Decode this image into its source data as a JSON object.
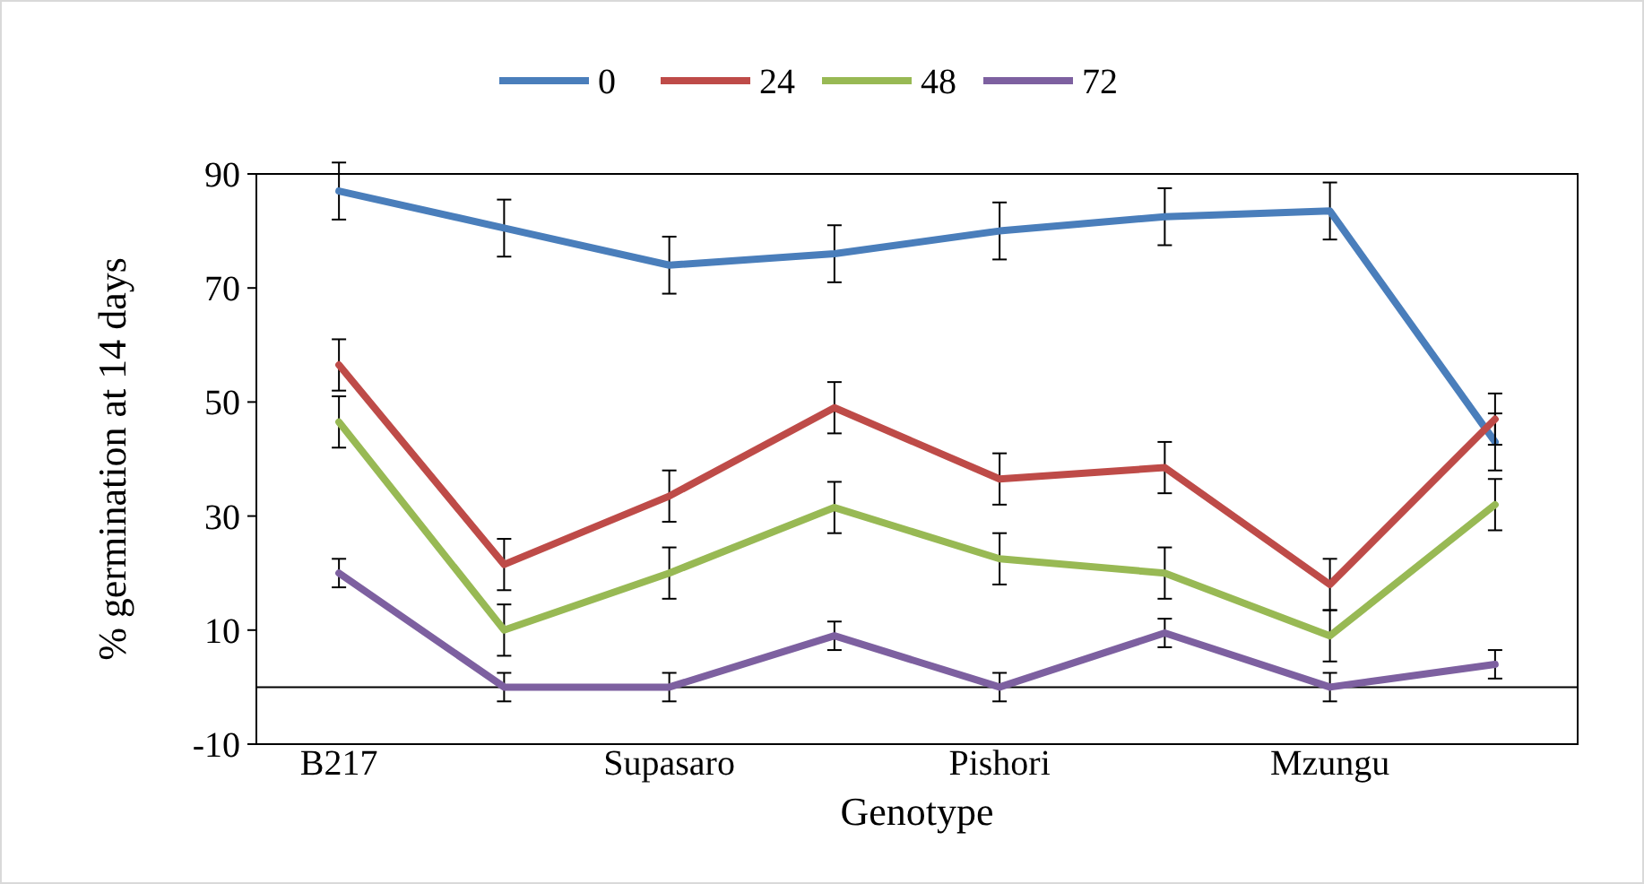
{
  "chart_data": {
    "type": "line",
    "xlabel": "Genotype",
    "ylabel": "% germination at 14 days",
    "categories": [
      "B217",
      null,
      "Supasaro",
      null,
      "Pishori",
      null,
      "Mzungu",
      null
    ],
    "series": [
      {
        "name": "0",
        "color": "#4a7ebb",
        "values": [
          87,
          80.5,
          74,
          76,
          80,
          82.5,
          83.5,
          43
        ],
        "errors": [
          5,
          5,
          5,
          5,
          5,
          5,
          5,
          5
        ]
      },
      {
        "name": "24",
        "color": "#be4b48",
        "values": [
          56.5,
          21.5,
          33.5,
          49,
          36.5,
          38.5,
          18,
          47
        ],
        "errors": [
          4.5,
          4.5,
          4.5,
          4.5,
          4.5,
          4.5,
          4.5,
          4.5
        ]
      },
      {
        "name": "48",
        "color": "#98b954",
        "values": [
          46.5,
          10,
          20,
          31.5,
          22.5,
          20,
          9,
          32
        ],
        "errors": [
          4.5,
          4.5,
          4.5,
          4.5,
          4.5,
          4.5,
          4.5,
          4.5
        ]
      },
      {
        "name": "72",
        "color": "#7d60a0",
        "values": [
          20,
          0,
          0,
          9,
          0,
          9.5,
          0,
          4
        ],
        "errors": [
          2.5,
          2.5,
          2.5,
          2.5,
          2.5,
          2.5,
          2.5,
          2.5
        ]
      }
    ],
    "ylim": [
      -10,
      90
    ],
    "yticks": [
      -10,
      10,
      30,
      50,
      70,
      90
    ],
    "grid": false,
    "legend": "top",
    "marker": "none",
    "line_style": "solid"
  }
}
